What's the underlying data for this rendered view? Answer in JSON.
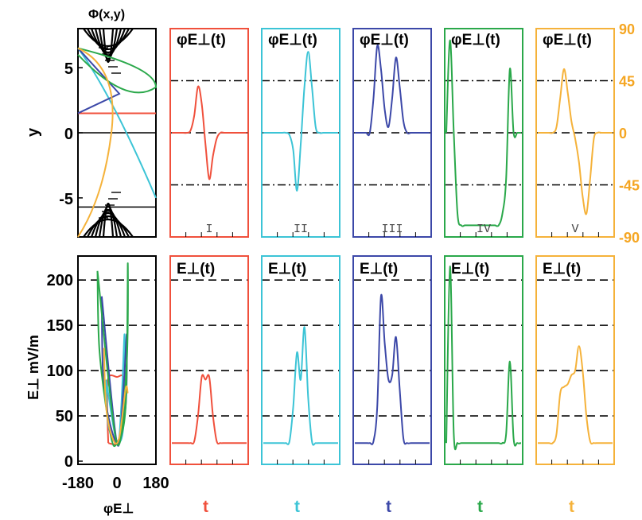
{
  "figure": {
    "top_left_title": "Φ(x,y)",
    "left_ylabel_top": "y",
    "left_ylabel_bottom": "E⊥ mV/m",
    "left_xlabel_bottom": "φE⊥",
    "top_panel_title": "φE⊥(t)",
    "bottom_panel_title": "E⊥(t)",
    "panel_xlabel": "t"
  },
  "colors": {
    "I": "#f0503c",
    "II": "#3cc4d6",
    "III": "#3c48a8",
    "IV": "#2aa84a",
    "V": "#f5b23a",
    "right_axis": "#f5a623"
  },
  "chart_data": [
    {
      "type": "line",
      "panel": "Phi(x,y) contour map",
      "title": "Φ(x,y)",
      "ylabel": "y",
      "ylim": [
        -8,
        8
      ],
      "yticks": [
        -5,
        0,
        5
      ],
      "series": [
        {
          "color": "red",
          "x": [
            0,
            1
          ],
          "y": [
            1.5,
            1.5
          ]
        },
        {
          "color": "cyan",
          "x": [
            1,
            0
          ],
          "y": [
            -8,
            6.5
          ]
        },
        {
          "color": "blue",
          "x": [
            0,
            0.5
          ],
          "y": [
            6.5,
            1.5
          ]
        },
        {
          "color": "green",
          "x": [
            0,
            0.5
          ],
          "y": [
            6.5,
            3.5
          ]
        },
        {
          "color": "yellow",
          "x": [
            0,
            0.2
          ],
          "y": [
            6.5,
            -8
          ]
        }
      ]
    },
    {
      "type": "line",
      "panel": "top row (phi_E_perp vs t)",
      "title": "φE⊥(t)",
      "xlabel": "t",
      "ylim": [
        -90,
        90
      ],
      "right_axis_ticks": [
        90,
        45,
        0,
        -45,
        -90
      ],
      "t": [
        0,
        0.05,
        0.1,
        0.15,
        0.2,
        0.25,
        0.3,
        0.35,
        0.4,
        0.45,
        0.5,
        0.55,
        0.6,
        0.65,
        0.7,
        0.75,
        0.8,
        0.85,
        0.9,
        0.95,
        1.0
      ],
      "series": [
        {
          "panel": "I",
          "values": [
            0,
            0,
            0,
            0,
            0,
            2,
            15,
            40,
            25,
            -10,
            -40,
            -20,
            -5,
            0,
            0,
            0,
            0,
            0,
            0,
            0,
            0
          ]
        },
        {
          "panel": "II",
          "values": [
            0,
            0,
            0,
            0,
            0,
            0,
            0,
            -2,
            -15,
            -50,
            -10,
            40,
            70,
            40,
            5,
            0,
            0,
            0,
            0,
            0,
            0
          ]
        },
        {
          "panel": "III",
          "values": [
            0,
            0,
            0,
            0,
            0,
            30,
            75,
            55,
            20,
            5,
            30,
            65,
            40,
            10,
            0,
            0,
            0,
            0,
            0,
            0,
            0
          ]
        },
        {
          "panel": "IV",
          "values": [
            0,
            80,
            0,
            -70,
            -80,
            -80,
            -80,
            -80,
            -80,
            -80,
            -80,
            -80,
            -80,
            -80,
            -80,
            -70,
            -40,
            55,
            0,
            0,
            0
          ]
        },
        {
          "panel": "V",
          "values": [
            0,
            0,
            0,
            0,
            0,
            5,
            30,
            55,
            35,
            10,
            -5,
            -25,
            -55,
            -70,
            -40,
            -5,
            0,
            0,
            0,
            0,
            0
          ]
        }
      ],
      "panel_labels": [
        "I",
        "II",
        "III",
        "IV",
        "V"
      ],
      "reference_lines": [
        45,
        0,
        -45
      ]
    },
    {
      "type": "line",
      "panel": "E_perp vs phi_E_perp",
      "xlabel": "φE⊥",
      "ylabel": "E⊥ mV/m",
      "xlim": [
        -180,
        180
      ],
      "xticks": [
        -180,
        0,
        180
      ],
      "ylim": [
        0,
        220
      ],
      "yticks": [
        0,
        50,
        100,
        150,
        200
      ],
      "series": [
        {
          "panel": "I",
          "x": [
            -40,
            -45,
            -40,
            0,
            30,
            20,
            0,
            -40
          ],
          "y": [
            20,
            60,
            92,
            93,
            90,
            40,
            20,
            20
          ]
        },
        {
          "panel": "II",
          "x": [
            -50,
            -40,
            0,
            30,
            35,
            20,
            0,
            -50
          ],
          "y": [
            90,
            40,
            20,
            40,
            140,
            60,
            20,
            90
          ]
        },
        {
          "panel": "III",
          "x": [
            -70,
            -60,
            0,
            40,
            45,
            30,
            0,
            -70
          ],
          "y": [
            182,
            80,
            20,
            60,
            140,
            80,
            20,
            182
          ]
        },
        {
          "panel": "IV",
          "x": [
            -90,
            -80,
            -30,
            0,
            40,
            50,
            45,
            0,
            -90
          ],
          "y": [
            210,
            120,
            30,
            20,
            60,
            218,
            110,
            20,
            210
          ]
        },
        {
          "panel": "V",
          "x": [
            -60,
            -50,
            -20,
            10,
            40,
            50
          ],
          "y": [
            125,
            60,
            25,
            25,
            80,
            75
          ]
        }
      ]
    },
    {
      "type": "line",
      "panel": "bottom row (E_perp vs t)",
      "title": "E⊥(t)",
      "xlabel": "t",
      "ylim": [
        0,
        220
      ],
      "t": [
        0,
        0.05,
        0.1,
        0.15,
        0.2,
        0.25,
        0.3,
        0.35,
        0.4,
        0.45,
        0.5,
        0.55,
        0.6,
        0.65,
        0.7,
        0.75,
        0.8,
        0.85,
        0.9,
        0.95,
        1.0
      ],
      "series": [
        {
          "panel": "I",
          "values": [
            20,
            20,
            20,
            20,
            20,
            20,
            22,
            50,
            93,
            90,
            93,
            50,
            22,
            20,
            20,
            20,
            20,
            20,
            20,
            20,
            20
          ]
        },
        {
          "panel": "II",
          "values": [
            20,
            20,
            20,
            20,
            20,
            20,
            20,
            22,
            60,
            120,
            90,
            148,
            70,
            22,
            20,
            20,
            20,
            20,
            20,
            20,
            20
          ]
        },
        {
          "panel": "III",
          "values": [
            20,
            20,
            20,
            20,
            20,
            22,
            60,
            182,
            130,
            90,
            95,
            137,
            80,
            25,
            20,
            20,
            20,
            20,
            20,
            20,
            20
          ]
        },
        {
          "panel": "IV",
          "values": [
            20,
            215,
            30,
            20,
            20,
            20,
            20,
            20,
            20,
            20,
            20,
            20,
            20,
            20,
            20,
            20,
            30,
            110,
            25,
            20,
            20
          ]
        },
        {
          "panel": "V",
          "values": [
            20,
            20,
            20,
            20,
            20,
            30,
            75,
            82,
            85,
            95,
            100,
            127,
            100,
            50,
            22,
            20,
            20,
            20,
            20,
            20,
            20
          ]
        }
      ],
      "reference_lines": [
        50,
        100,
        150,
        200
      ]
    }
  ]
}
